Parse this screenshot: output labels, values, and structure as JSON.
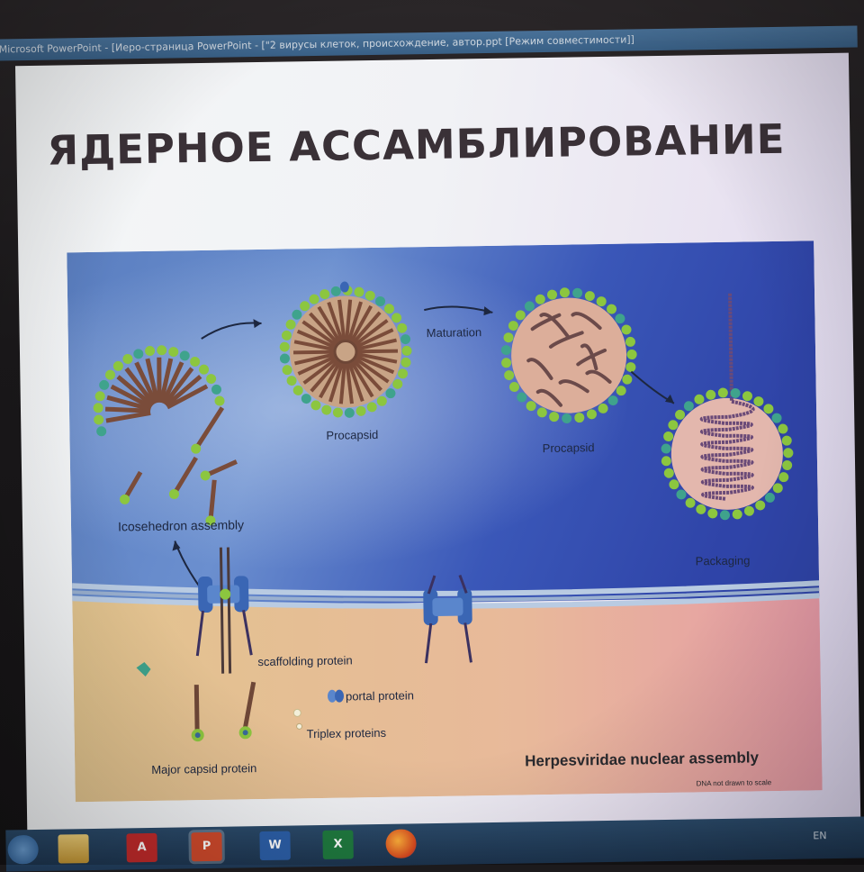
{
  "window": {
    "title": "Microsoft PowerPoint - [Иеро-страница PowerPoint - [\"2 вирусы клеток, происхождение, автор.ppt [Режим совместимости]]"
  },
  "slide": {
    "title": "ЯДЕРНОЕ АССАМБЛИРОВАНИЕ"
  },
  "figure": {
    "labels": {
      "procapsid_1": "Procapsid",
      "maturation": "Maturation",
      "procapsid_2": "Procapsid",
      "packaging": "Packaging",
      "icosahedron": "Icosehedron assembly",
      "scaffolding": "scaffolding protein",
      "portal": "portal protein",
      "triplex": "Triplex proteins",
      "major_capsid": "Major capsid protein",
      "caption": "Herpesviridae nuclear assembly",
      "note": "DNA not drawn to scale"
    },
    "colors": {
      "nucleus_top": "#3d5fb0",
      "cytoplasm": "#e6c184",
      "capsid_green": "#8cc63f",
      "scaffold_brown": "#7a4c3a",
      "portal_blue": "#3a66b4",
      "dna_purple": "#6a4a78"
    }
  },
  "taskbar": {
    "icons": [
      "start-orb",
      "file-explorer",
      "acrobat",
      "powerpoint",
      "word",
      "excel",
      "firefox"
    ],
    "language": "EN"
  }
}
